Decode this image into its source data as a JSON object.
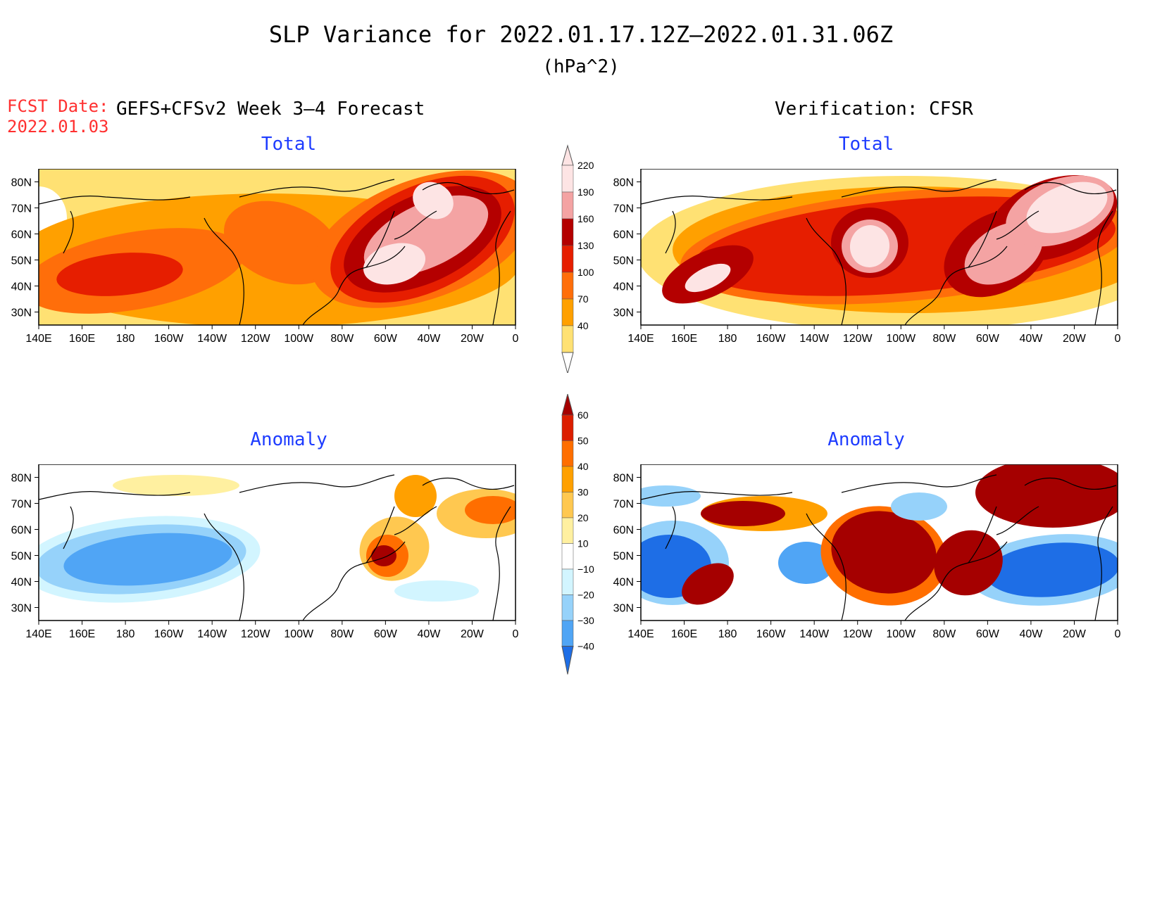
{
  "header": {
    "title": "SLP Variance for 2022.01.17.12Z–2022.01.31.06Z",
    "units": "(hPa^2)",
    "fcst_label": "FCST Date:",
    "fcst_date": "2022.01.03",
    "left_heading": "GEFS+CFSv2 Week 3–4 Forecast",
    "right_heading": "Verification: CFSR"
  },
  "panels": [
    {
      "id": "fcst-total",
      "subtitle": "Total"
    },
    {
      "id": "verif-total",
      "subtitle": "Total"
    },
    {
      "id": "fcst-anomaly",
      "subtitle": "Anomaly"
    },
    {
      "id": "verif-anomaly",
      "subtitle": "Anomaly"
    }
  ],
  "axes": {
    "lon_labels": [
      "140E",
      "160E",
      "180",
      "160W",
      "140W",
      "120W",
      "100W",
      "80W",
      "60W",
      "40W",
      "20W",
      "0"
    ],
    "lat_labels": [
      "80N",
      "70N",
      "60N",
      "50N",
      "40N",
      "30N"
    ]
  },
  "colorbars": {
    "total": {
      "levels": [
        "220",
        "190",
        "160",
        "130",
        "100",
        "70",
        "40"
      ],
      "colors": [
        "#fde4e4",
        "#f4a3a3",
        "#b40000",
        "#e61e00",
        "#ff6e0a",
        "#ffa000",
        "#ffe173"
      ]
    },
    "anomaly": {
      "levels": [
        "60",
        "50",
        "40",
        "30",
        "20",
        "10",
        "−10",
        "−20",
        "−30",
        "−40"
      ],
      "colors": [
        "#a50000",
        "#dc1e00",
        "#ff6e00",
        "#ffa000",
        "#ffc850",
        "#fff0a0",
        "#ffffff",
        "#d2f5ff",
        "#96d2fa",
        "#50a5f5",
        "#1e6ee6"
      ]
    }
  },
  "colors": {
    "title_red": "#ff3030",
    "subtitle_blue": "#1e3cff"
  }
}
